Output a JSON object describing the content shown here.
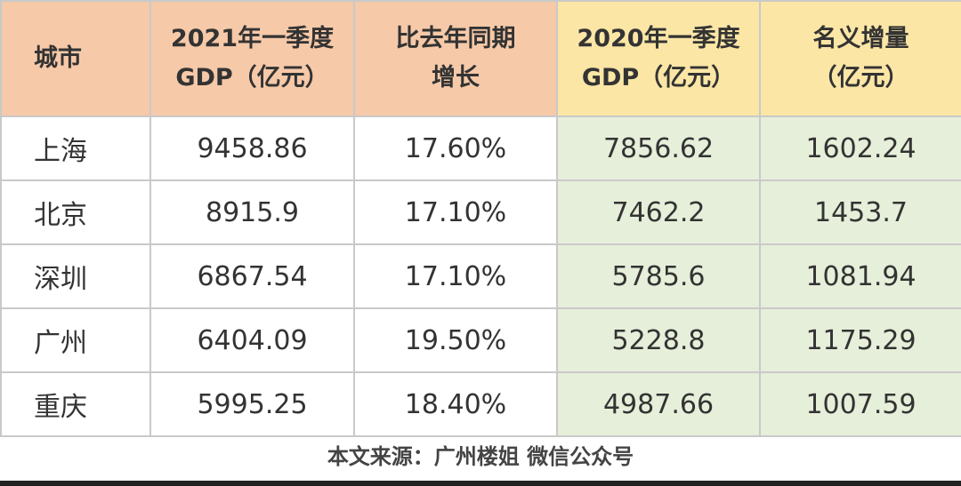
{
  "table": {
    "header": [
      [
        "城市"
      ],
      [
        "2021年一季度",
        "GDP（亿元）"
      ],
      [
        "比去年同期",
        "增长"
      ],
      [
        "2020年一季度",
        "GDP（亿元）"
      ],
      [
        "名义增量",
        "（亿元）"
      ]
    ],
    "rows": [
      [
        "上海",
        "9458.86",
        "17.60%",
        "7856.62",
        "1602.24"
      ],
      [
        "北京",
        "8915.9",
        "17.10%",
        "7462.2",
        "1453.7"
      ],
      [
        "深圳",
        "6867.54",
        "17.10%",
        "5785.6",
        "1081.94"
      ],
      [
        "广州",
        "6404.09",
        "19.50%",
        "5228.8",
        "1175.29"
      ],
      [
        "重庆",
        "5995.25",
        "18.40%",
        "4987.66",
        "1007.59"
      ]
    ]
  },
  "footer": "本文来源：广州楼姐 微信公众号"
}
